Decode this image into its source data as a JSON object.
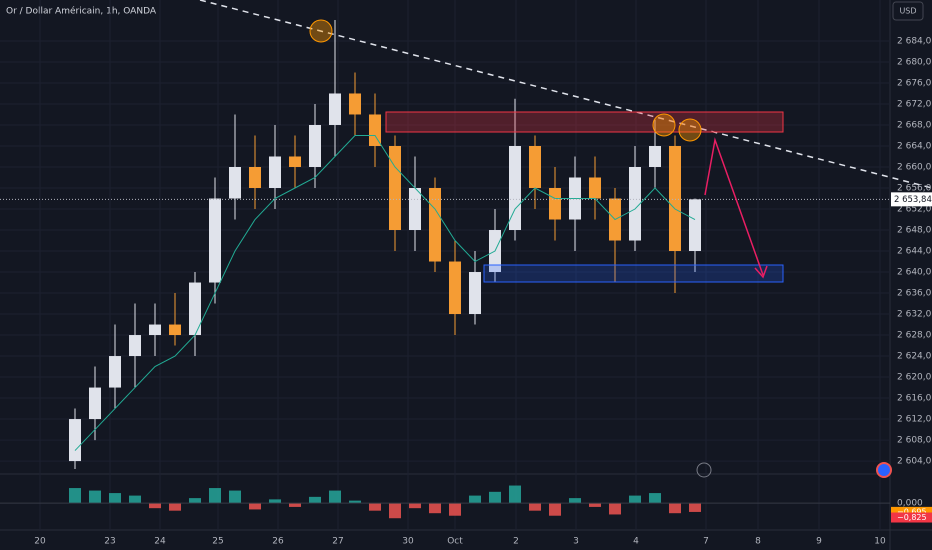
{
  "header": {
    "title": "Or / Dollar Américain, 1h, OANDA",
    "currency": "USD"
  },
  "chart_data": {
    "type": "candlestick",
    "x": [
      3.75,
      4.75,
      5.75,
      6.75,
      7.75,
      8.75,
      9.75,
      10.75,
      11.75,
      12.75,
      13.75,
      14.75,
      15.75,
      16.75,
      17.75,
      18.75,
      19.75,
      20.75,
      21.75,
      22.75,
      23.75,
      24.75,
      25.75,
      26.75,
      27.75,
      28.75,
      29.75,
      30.75,
      31.75,
      32.75,
      33.75,
      34.75
    ],
    "open": [
      2604,
      2612,
      2618,
      2624,
      2628,
      2630,
      2628,
      2638,
      2654,
      2660,
      2656,
      2662,
      2660,
      2668,
      2674,
      2670,
      2664,
      2648,
      2656,
      2642,
      2632,
      2640,
      2648,
      2664,
      2656,
      2650,
      2658,
      2654,
      2646,
      2660,
      2664,
      2644
    ],
    "high": [
      2614,
      2622,
      2630,
      2634,
      2634,
      2636,
      2640,
      2658,
      2670,
      2666,
      2668,
      2666,
      2672,
      2688,
      2678,
      2674,
      2666,
      2662,
      2658,
      2646,
      2644,
      2652,
      2673,
      2666,
      2660,
      2662,
      2662,
      2656,
      2664,
      2669,
      2666,
      2654
    ],
    "low": [
      2602.5,
      2608,
      2614,
      2618,
      2624,
      2626,
      2624,
      2634,
      2650,
      2652,
      2652,
      2656,
      2656,
      2662,
      2666,
      2660,
      2644,
      2644,
      2640,
      2628,
      2630,
      2638,
      2646,
      2652,
      2646,
      2644,
      2650,
      2638,
      2644,
      2656,
      2636,
      2640
    ],
    "close": [
      2612,
      2618,
      2624,
      2628,
      2630,
      2628,
      2638,
      2654,
      2660,
      2656,
      2662,
      2660,
      2668,
      2674,
      2670,
      2664,
      2648,
      2656,
      2642,
      2632,
      2640,
      2648,
      2664,
      2656,
      2650,
      2658,
      2654,
      2646,
      2660,
      2664,
      2644,
      2653.84
    ],
    "up_color": "#e0e3eb",
    "down_color": "#f59c34",
    "ema": {
      "color": "#22ab94",
      "values": [
        2606,
        2610,
        2614,
        2618,
        2622,
        2624,
        2628,
        2636,
        2644,
        2650,
        2654,
        2656,
        2658,
        2662,
        2666,
        2666,
        2660,
        2656,
        2652,
        2646,
        2642,
        2644,
        2652,
        2656,
        2654,
        2654,
        2654,
        2650,
        2652,
        2656,
        2652,
        2650
      ]
    },
    "xlim": [
      0,
      44.5
    ],
    "xticks": [
      {
        "value": 2,
        "label": "20"
      },
      {
        "value": 5.5,
        "label": "23"
      },
      {
        "value": 8,
        "label": "24"
      },
      {
        "value": 10.9,
        "label": "25"
      },
      {
        "value": 13.9,
        "label": "26"
      },
      {
        "value": 16.9,
        "label": "27"
      },
      {
        "value": 20.4,
        "label": "30"
      },
      {
        "value": 22.75,
        "label": "Oct"
      },
      {
        "value": 25.8,
        "label": "2"
      },
      {
        "value": 28.8,
        "label": "3"
      },
      {
        "value": 31.8,
        "label": "4"
      },
      {
        "value": 35.3,
        "label": "7"
      },
      {
        "value": 37.9,
        "label": "8"
      },
      {
        "value": 40.95,
        "label": "9"
      },
      {
        "value": 44,
        "label": "10"
      }
    ],
    "ylim": [
      2602.3,
      2691.8
    ],
    "yticks": [
      {
        "value": 2604,
        "label": "2 604,000"
      },
      {
        "value": 2608,
        "label": "2 608,000"
      },
      {
        "value": 2612,
        "label": "2 612,000"
      },
      {
        "value": 2616,
        "label": "2 616,000"
      },
      {
        "value": 2620,
        "label": "2 620,000"
      },
      {
        "value": 2624,
        "label": "2 624,000"
      },
      {
        "value": 2628,
        "label": "2 628,000"
      },
      {
        "value": 2632,
        "label": "2 632,000"
      },
      {
        "value": 2636,
        "label": "2 636,000"
      },
      {
        "value": 2640,
        "label": "2 640,000"
      },
      {
        "value": 2644,
        "label": "2 644,000"
      },
      {
        "value": 2648,
        "label": "2 648,000"
      },
      {
        "value": 2652,
        "label": "2 652,000"
      },
      {
        "value": 2656,
        "label": "2 656,000"
      },
      {
        "value": 2660,
        "label": "2 660,000"
      },
      {
        "value": 2664,
        "label": "2 664,000"
      },
      {
        "value": 2668,
        "label": "2 668,000"
      },
      {
        "value": 2672,
        "label": "2 672,000"
      },
      {
        "value": 2676,
        "label": "2 676,000"
      },
      {
        "value": 2680,
        "label": "2 680,000"
      },
      {
        "value": 2684,
        "label": "2 684,000"
      }
    ],
    "last_price": {
      "value": 2653.84,
      "label": "2 653,840"
    },
    "oscillator": {
      "values": [
        1.2,
        1.0,
        0.8,
        0.6,
        -0.4,
        -0.6,
        0.4,
        1.2,
        1.0,
        -0.5,
        0.3,
        -0.3,
        0.5,
        1.0,
        0.2,
        -0.6,
        -1.2,
        -0.4,
        -0.8,
        -1.0,
        0.6,
        0.9,
        1.4,
        -0.6,
        -1.0,
        0.4,
        -0.3,
        -0.9,
        0.6,
        0.8,
        -0.8,
        -0.7
      ],
      "up_color": "#26a69a",
      "down_color": "#ef5350",
      "ylim": [
        -1.5,
        2.0
      ],
      "yticks": [
        {
          "value": 0,
          "label": "0,000"
        }
      ],
      "markers": [
        {
          "value": -0.695,
          "label": "−0,695"
        },
        {
          "value": -0.825,
          "label": "−0,825"
        }
      ]
    }
  }
}
